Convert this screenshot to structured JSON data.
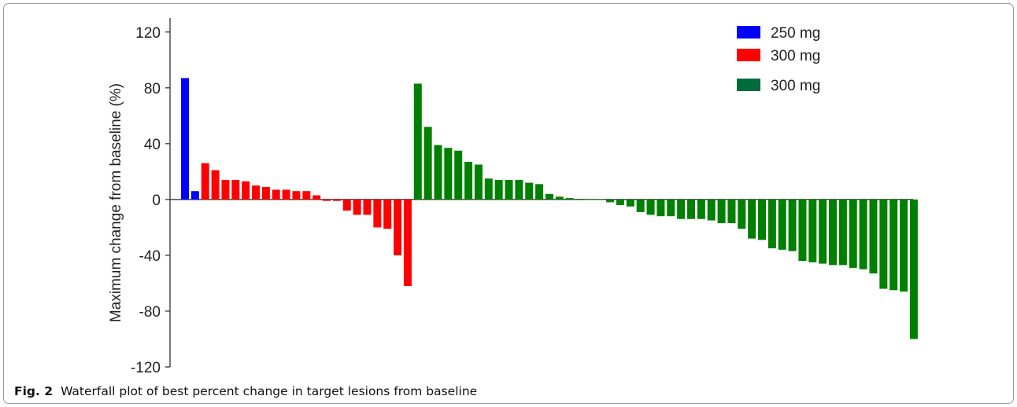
{
  "caption": {
    "label": "Fig. 2",
    "text": "Waterfall plot of best percent change in target lesions from baseline"
  },
  "chart_data": {
    "type": "bar",
    "title": "",
    "xlabel": "",
    "ylabel": "Maximum change from baseline (%)",
    "ylim": [
      -120,
      130
    ],
    "yticks": [
      120,
      80,
      40,
      0,
      -40,
      -80,
      -120
    ],
    "grid": false,
    "legend_position": "top-right",
    "series": [
      {
        "name": "250 mg",
        "color": "#0000ff",
        "values": [
          87,
          6
        ]
      },
      {
        "name": "300 mg",
        "color": "#ff0000",
        "values": [
          26,
          21,
          14,
          14,
          13,
          10,
          9,
          7,
          7,
          6,
          6,
          3,
          -1,
          -1,
          -8,
          -11,
          -11,
          -20,
          -21,
          -40,
          -62
        ]
      },
      {
        "name": "300 mg",
        "color": "#008000",
        "legend_color": "#006b3c",
        "values": [
          83,
          52,
          39,
          37,
          35,
          27,
          25,
          15,
          14,
          14,
          14,
          12,
          11,
          4,
          2,
          1,
          0.5,
          0,
          0,
          -2,
          -4,
          -5,
          -9,
          -11,
          -12,
          -12,
          -14,
          -14,
          -14,
          -15,
          -17,
          -17,
          -21,
          -28,
          -29,
          -35,
          -36,
          -37,
          -44,
          -45,
          -46,
          -47,
          -47,
          -49,
          -50,
          -53,
          -64,
          -65,
          -66,
          -100
        ]
      }
    ]
  }
}
